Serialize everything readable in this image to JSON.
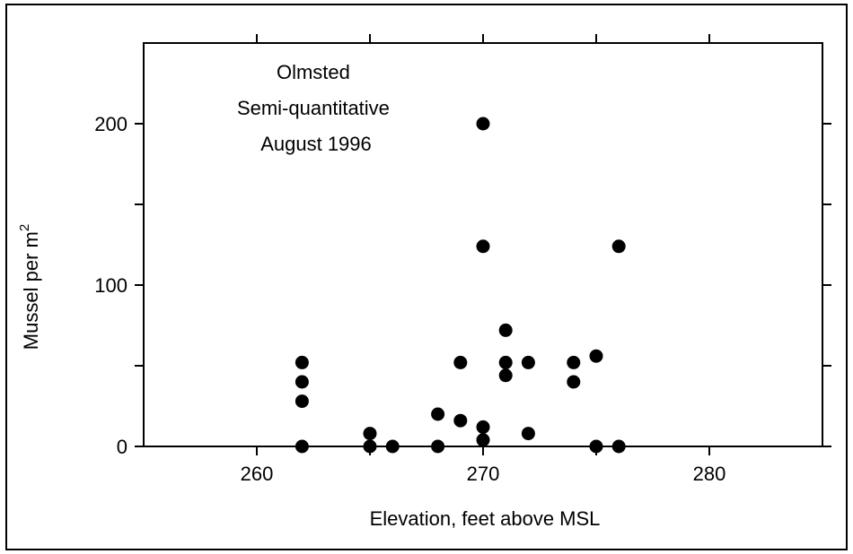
{
  "chart_data": {
    "type": "scatter",
    "title": "",
    "annotation": [
      "Olmsted",
      "Semi-quantitative",
      "August 1996"
    ],
    "xlabel": "Elevation, feet above MSL",
    "ylabel_main": "Mussel per m",
    "ylabel_sup": "2",
    "xlim": [
      255,
      285
    ],
    "ylim": [
      0,
      250
    ],
    "x_ticks_labeled": [
      260,
      270,
      280
    ],
    "x_ticks_minor": [
      265,
      275
    ],
    "y_ticks_labeled": [
      0,
      100,
      200
    ],
    "y_ticks_minor": [
      50,
      150
    ],
    "grid": false,
    "marker_color": "#000000",
    "points": [
      {
        "x": 262,
        "y": 52
      },
      {
        "x": 262,
        "y": 40
      },
      {
        "x": 262,
        "y": 28
      },
      {
        "x": 262,
        "y": 0
      },
      {
        "x": 265,
        "y": 8
      },
      {
        "x": 265,
        "y": 0
      },
      {
        "x": 266,
        "y": 0
      },
      {
        "x": 268,
        "y": 20
      },
      {
        "x": 268,
        "y": 0
      },
      {
        "x": 269,
        "y": 52
      },
      {
        "x": 269,
        "y": 16
      },
      {
        "x": 270,
        "y": 200
      },
      {
        "x": 270,
        "y": 124
      },
      {
        "x": 270,
        "y": 12
      },
      {
        "x": 270,
        "y": 4
      },
      {
        "x": 271,
        "y": 72
      },
      {
        "x": 271,
        "y": 52
      },
      {
        "x": 271,
        "y": 44
      },
      {
        "x": 272,
        "y": 52
      },
      {
        "x": 272,
        "y": 8
      },
      {
        "x": 274,
        "y": 52
      },
      {
        "x": 274,
        "y": 40
      },
      {
        "x": 275,
        "y": 56
      },
      {
        "x": 275,
        "y": 0
      },
      {
        "x": 276,
        "y": 124
      },
      {
        "x": 276,
        "y": 0
      }
    ]
  }
}
